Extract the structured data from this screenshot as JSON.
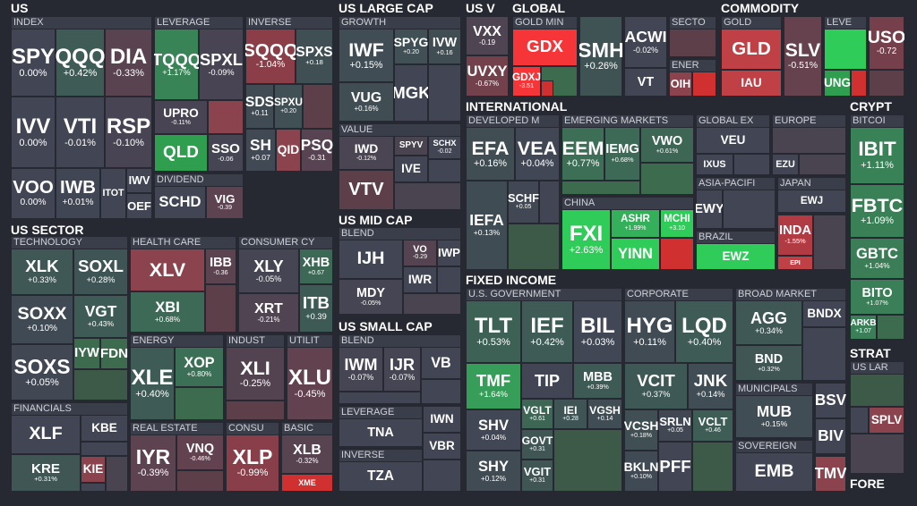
{
  "sections": [
    {
      "title": "US",
      "groups": [
        {
          "title": "INDEX",
          "tiles": [
            {
              "ticker": "SPY",
              "change": "0.00%"
            },
            {
              "ticker": "QQQ",
              "change": "+0.42%"
            },
            {
              "ticker": "DIA",
              "change": "-0.33%"
            },
            {
              "ticker": "IVV",
              "change": "0.00%"
            },
            {
              "ticker": "VTI",
              "change": "-0.01%"
            },
            {
              "ticker": "RSP",
              "change": "-0.10%"
            },
            {
              "ticker": "VOO",
              "change": "0.00%"
            },
            {
              "ticker": "IWB",
              "change": "+0.01%"
            },
            {
              "ticker": "ITOT",
              "color": "#414554"
            },
            {
              "ticker": "IWV",
              "color": "#414554"
            },
            {
              "ticker": "OEF",
              "color": "#414554"
            }
          ]
        },
        {
          "title": "LEVERAGE",
          "tiles": [
            {
              "ticker": "TQQQ",
              "change": "+1.17%"
            },
            {
              "ticker": "SPXL",
              "change": "-0.09%"
            },
            {
              "ticker": "UPRO",
              "change": "-0.11%"
            },
            {
              "ticker": "QLD",
              "color": "#2f9e4f"
            },
            {
              "ticker": "SSO",
              "change": "-0.06"
            }
          ]
        },
        {
          "title": "INVERSE",
          "tiles": [
            {
              "ticker": "SQQQ",
              "change": "-1.04%"
            },
            {
              "ticker": "SPXS",
              "change": "+0.18"
            },
            {
              "ticker": "SDS",
              "change": "+0.11"
            },
            {
              "ticker": "SPXU",
              "change": "+0.20"
            },
            {
              "ticker": "SH",
              "change": "+0.07"
            },
            {
              "ticker": "QID",
              "color": "#8b444e"
            },
            {
              "ticker": "PSQ",
              "change": "-0.31"
            }
          ]
        },
        {
          "title": "DIVIDEND",
          "tiles": [
            {
              "ticker": "SCHD",
              "color": "#414554"
            },
            {
              "ticker": "VIG",
              "change": "-0.39"
            }
          ]
        }
      ]
    },
    {
      "title": "US SECTOR",
      "groups": [
        {
          "title": "TECHNOLOGY",
          "tiles": [
            {
              "ticker": "XLK",
              "change": "+0.33%"
            },
            {
              "ticker": "SOXL",
              "change": "+0.28%"
            },
            {
              "ticker": "SOXX",
              "change": "+0.10%"
            },
            {
              "ticker": "VGT",
              "change": "+0.43%"
            },
            {
              "ticker": "SOXS",
              "change": "+0.05%"
            },
            {
              "ticker": "IYW",
              "color": "#3d6b4d"
            },
            {
              "ticker": "FDN",
              "color": "#3d6b4d"
            }
          ]
        },
        {
          "title": "HEALTH CARE",
          "tiles": [
            {
              "ticker": "XLV",
              "color": "#8b444e"
            },
            {
              "ticker": "IBB",
              "change": "-0.36"
            },
            {
              "ticker": "XBI",
              "change": "+0.68%"
            }
          ]
        },
        {
          "title": "CONSUMER CY",
          "tiles": [
            {
              "ticker": "XLY",
              "change": "-0.05%"
            },
            {
              "ticker": "XHB",
              "change": "+0.67"
            },
            {
              "ticker": "XRT",
              "change": "-0.21%"
            },
            {
              "ticker": "ITB",
              "change": "+0.39"
            }
          ]
        },
        {
          "title": "ENERGY",
          "tiles": [
            {
              "ticker": "XLE",
              "change": "+0.40%"
            },
            {
              "ticker": "XOP",
              "change": "+0.80%"
            }
          ]
        },
        {
          "title": "INDUST",
          "tiles": [
            {
              "ticker": "XLI",
              "change": "-0.25%"
            }
          ]
        },
        {
          "title": "UTILIT",
          "tiles": [
            {
              "ticker": "XLU",
              "change": "-0.45%"
            }
          ]
        },
        {
          "title": "FINANCIALS",
          "tiles": [
            {
              "ticker": "XLF",
              "color": "#414554"
            },
            {
              "ticker": "KBE",
              "color": "#414554"
            },
            {
              "ticker": "KRE",
              "change": "+0.31%"
            },
            {
              "ticker": "KIE",
              "color": "#8b444e"
            }
          ]
        },
        {
          "title": "REAL ESTATE",
          "tiles": [
            {
              "ticker": "IYR",
              "change": "-0.39%"
            },
            {
              "ticker": "VNQ",
              "change": "-0.46%"
            }
          ]
        },
        {
          "title": "CONSU",
          "tiles": [
            {
              "ticker": "XLP",
              "change": "-0.99%"
            }
          ]
        },
        {
          "title": "BASIC",
          "tiles": [
            {
              "ticker": "XLB",
              "change": "-0.32%"
            },
            {
              "ticker": "XME",
              "color": "#d0302f"
            }
          ]
        }
      ]
    },
    {
      "title": "US LARGE CAP",
      "groups": [
        {
          "title": "GROWTH",
          "tiles": [
            {
              "ticker": "IWF",
              "change": "+0.15%"
            },
            {
              "ticker": "SPYG",
              "change": "+0.20"
            },
            {
              "ticker": "IVW",
              "change": "+0.16"
            },
            {
              "ticker": "VUG",
              "change": "+0.16%"
            },
            {
              "ticker": "MGK",
              "color": "#414554"
            }
          ]
        },
        {
          "title": "VALUE",
          "tiles": [
            {
              "ticker": "IWD",
              "change": "-0.12%"
            },
            {
              "ticker": "SPYV",
              "color": "#4a4450"
            },
            {
              "ticker": "SCHX",
              "change": "-0.02"
            },
            {
              "ticker": "IVE",
              "color": "#414554"
            },
            {
              "ticker": "VTV",
              "color": "#5c3f48"
            }
          ]
        }
      ]
    },
    {
      "title": "US MID CAP",
      "groups": [
        {
          "title": "BLEND",
          "tiles": [
            {
              "ticker": "IJH",
              "color": "#414554"
            },
            {
              "ticker": "VO",
              "change": "-0.29"
            },
            {
              "ticker": "IWP",
              "color": "#414554"
            },
            {
              "ticker": "MDY",
              "change": "-0.05%"
            },
            {
              "ticker": "IWR",
              "color": "#414554"
            }
          ]
        }
      ]
    },
    {
      "title": "US SMALL CAP",
      "groups": [
        {
          "title": "BLEND",
          "tiles": [
            {
              "ticker": "IWM",
              "change": "-0.07%"
            },
            {
              "ticker": "IJR",
              "change": "-0.07%"
            },
            {
              "ticker": "VB",
              "color": "#414554"
            }
          ]
        },
        {
          "title": "LEVERAGE",
          "tiles": [
            {
              "ticker": "TNA",
              "color": "#414554"
            }
          ]
        },
        {
          "title": "INVERSE",
          "tiles": [
            {
              "ticker": "TZA",
              "color": "#414554"
            }
          ]
        }
      ],
      "tiles": [
        {
          "ticker": "IWN",
          "color": "#414554"
        },
        {
          "ticker": "VBR",
          "color": "#414554"
        }
      ]
    },
    {
      "title": "US V",
      "tiles": [
        {
          "ticker": "VXX",
          "change": "-0.19"
        },
        {
          "ticker": "UVXY",
          "change": "-0.67%"
        }
      ]
    },
    {
      "title": "GLOBAL",
      "groups": [
        {
          "title": "GOLD MIN",
          "tiles": [
            {
              "ticker": "GDX",
              "color": "#f63538"
            },
            {
              "ticker": "GDXJ",
              "change": "-3.51"
            }
          ]
        },
        {
          "title": "SECTO",
          "tiles": []
        },
        {
          "title": "ENER",
          "tiles": [
            {
              "ticker": "OIH",
              "color": "#8b444e"
            }
          ]
        }
      ],
      "tiles": [
        {
          "ticker": "SMH",
          "change": "+0.26%"
        },
        {
          "ticker": "ACWI",
          "change": "-0.02%"
        },
        {
          "ticker": "VT",
          "color": "#414554"
        }
      ]
    },
    {
      "title": "COMMODITY",
      "groups": [
        {
          "title": "GOLD",
          "tiles": [
            {
              "ticker": "GLD",
              "color": "#bf4045"
            },
            {
              "ticker": "IAU",
              "color": "#bf4045"
            }
          ]
        },
        {
          "title": "LEVE",
          "tiles": [
            {
              "ticker": "UNG",
              "color": "#2f9e4f"
            }
          ]
        }
      ],
      "tiles": [
        {
          "ticker": "SLV",
          "change": "-0.51%"
        },
        {
          "ticker": "USO",
          "change": "-0.72"
        }
      ]
    },
    {
      "title": "INTERNATIONAL",
      "groups": [
        {
          "title": "DEVELOPED M",
          "tiles": [
            {
              "ticker": "EFA",
              "change": "+0.16%"
            },
            {
              "ticker": "VEA",
              "change": "+0.04%"
            },
            {
              "ticker": "SCHF",
              "change": "+0.05"
            },
            {
              "ticker": "IEFA",
              "change": "+0.13%"
            }
          ]
        },
        {
          "title": "EMERGING MARKETS",
          "tiles": [
            {
              "ticker": "EEM",
              "change": "+0.77%"
            },
            {
              "ticker": "IEMG",
              "change": "+0.68%"
            },
            {
              "ticker": "VWO",
              "change": "+0.61%"
            }
          ]
        },
        {
          "title": "CHINA",
          "tiles": [
            {
              "ticker": "FXI",
              "change": "+2.63%"
            },
            {
              "ticker": "ASHR",
              "change": "+1.99%"
            },
            {
              "ticker": "MCHI",
              "change": "+3.10"
            },
            {
              "ticker": "YINN",
              "color": "#30cc5a"
            }
          ]
        },
        {
          "title": "GLOBAL EX",
          "tiles": [
            {
              "ticker": "VEU",
              "color": "#414554"
            },
            {
              "ticker": "IXUS",
              "color": "#414554"
            }
          ]
        },
        {
          "title": "EUROPE",
          "tiles": [
            {
              "ticker": "EZU",
              "color": "#414554"
            }
          ]
        },
        {
          "title": "ASIA-PACIFI",
          "tiles": [
            {
              "ticker": "EWY",
              "color": "#414554"
            }
          ]
        },
        {
          "title": "JAPAN",
          "tiles": [
            {
              "ticker": "EWJ",
              "color": "#414554"
            }
          ]
        },
        {
          "title": "BRAZIL",
          "tiles": [
            {
              "ticker": "EWZ",
              "color": "#30cc5a"
            }
          ]
        }
      ],
      "tiles": [
        {
          "ticker": "INDA",
          "change": "-1.55%"
        },
        {
          "ticker": "EPI",
          "color": "#bf4045"
        }
      ]
    },
    {
      "title": "FIXED INCOME",
      "groups": [
        {
          "title": "U.S. GOVERNMENT",
          "tiles": [
            {
              "ticker": "TLT",
              "change": "+0.53%"
            },
            {
              "ticker": "IEF",
              "change": "+0.42%"
            },
            {
              "ticker": "BIL",
              "change": "+0.03%"
            },
            {
              "ticker": "TMF",
              "change": "+1.64%"
            },
            {
              "ticker": "TIP",
              "color": "#414554"
            },
            {
              "ticker": "MBB",
              "change": "+0.39%"
            },
            {
              "ticker": "SHV",
              "change": "+0.04%"
            },
            {
              "ticker": "VGLT",
              "change": "+0.61"
            },
            {
              "ticker": "IEI",
              "change": "+0.28"
            },
            {
              "ticker": "VGSH",
              "change": "+0.14"
            },
            {
              "ticker": "GOVT",
              "change": "+0.31"
            },
            {
              "ticker": "SHY",
              "change": "+0.12%"
            },
            {
              "ticker": "VGIT",
              "change": "+0.31"
            }
          ]
        },
        {
          "title": "CORPORATE",
          "tiles": [
            {
              "ticker": "HYG",
              "change": "+0.11%"
            },
            {
              "ticker": "LQD",
              "change": "+0.40%"
            },
            {
              "ticker": "VCIT",
              "change": "+0.37%"
            },
            {
              "ticker": "JNK",
              "change": "+0.14%"
            },
            {
              "ticker": "VCSH",
              "change": "+0.18%"
            },
            {
              "ticker": "SRLN",
              "change": "+0.05"
            },
            {
              "ticker": "VCLT",
              "change": "+0.46"
            },
            {
              "ticker": "BKLN",
              "change": "+0.10%"
            },
            {
              "ticker": "PFF",
              "color": "#414554"
            }
          ]
        },
        {
          "title": "BROAD MARKET",
          "tiles": [
            {
              "ticker": "AGG",
              "change": "+0.34%"
            },
            {
              "ticker": "BNDX",
              "color": "#414554"
            },
            {
              "ticker": "BND",
              "change": "+0.32%"
            }
          ]
        },
        {
          "title": "MUNICIPALS",
          "tiles": [
            {
              "ticker": "MUB",
              "change": "+0.15%"
            }
          ]
        },
        {
          "title": "SOVEREIGN",
          "tiles": [
            {
              "ticker": "EMB",
              "color": "#414554"
            }
          ]
        }
      ],
      "tiles": [
        {
          "ticker": "BSV",
          "color": "#414554"
        },
        {
          "ticker": "BIV",
          "color": "#414554"
        },
        {
          "ticker": "TMV",
          "color": "#8b444e"
        }
      ]
    },
    {
      "title": "CRYPT",
      "groups": [
        {
          "title": "BITCOI",
          "tiles": [
            {
              "ticker": "IBIT",
              "change": "+1.11%"
            },
            {
              "ticker": "FBTC",
              "change": "+1.09%"
            },
            {
              "ticker": "GBTC",
              "change": "+1.04%"
            },
            {
              "ticker": "BITO",
              "change": "+1.07%"
            },
            {
              "ticker": "ARKB",
              "change": "+1.07"
            }
          ]
        }
      ]
    },
    {
      "title": "STRAT",
      "groups": [
        {
          "title": "US LAR",
          "tiles": [
            {
              "ticker": "SPLV",
              "color": "#8b444e"
            }
          ]
        }
      ]
    },
    {
      "title": "FORE"
    }
  ]
}
